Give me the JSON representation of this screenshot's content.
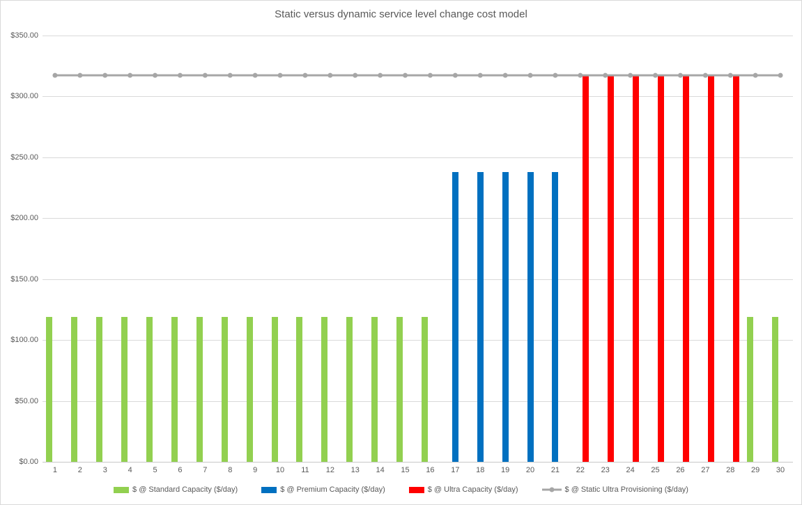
{
  "chart_data": {
    "type": "bar",
    "title": "Static versus dynamic service level change cost model",
    "categories": [
      "1",
      "2",
      "3",
      "4",
      "5",
      "6",
      "7",
      "8",
      "9",
      "10",
      "11",
      "12",
      "13",
      "14",
      "15",
      "16",
      "17",
      "18",
      "19",
      "20",
      "21",
      "22",
      "23",
      "24",
      "25",
      "26",
      "27",
      "28",
      "29",
      "30"
    ],
    "y_axis": {
      "range": [
        0,
        350
      ],
      "tick_step": 50,
      "tick_labels": [
        "$0.00",
        "$50.00",
        "$100.00",
        "$150.00",
        "$200.00",
        "$250.00",
        "$300.00",
        "$350.00"
      ]
    },
    "grid": true,
    "legend_position": "bottom",
    "series": [
      {
        "name": "$ @ Standard Capacity ($/day)",
        "type": "bar",
        "color": "#92D050",
        "values": [
          119.15,
          119.15,
          119.15,
          119.15,
          119.15,
          119.15,
          119.15,
          119.15,
          119.15,
          119.15,
          119.15,
          119.15,
          119.15,
          119.15,
          119.15,
          119.15,
          null,
          null,
          null,
          null,
          null,
          null,
          null,
          null,
          null,
          null,
          null,
          null,
          119.15,
          119.15
        ]
      },
      {
        "name": "$ @ Premium Capacity ($/day)",
        "type": "bar",
        "color": "#0070C0",
        "values": [
          null,
          null,
          null,
          null,
          null,
          null,
          null,
          null,
          null,
          null,
          null,
          null,
          null,
          null,
          null,
          null,
          237.7,
          237.7,
          237.7,
          237.7,
          237.7,
          null,
          null,
          null,
          null,
          null,
          null,
          null,
          null,
          null
        ]
      },
      {
        "name": "$ @ Ultra Capacity ($/day)",
        "type": "bar",
        "color": "#FF0000",
        "values": [
          null,
          null,
          null,
          null,
          null,
          null,
          null,
          null,
          null,
          null,
          null,
          null,
          null,
          null,
          null,
          null,
          null,
          null,
          null,
          null,
          null,
          317.3,
          317.3,
          317.3,
          317.3,
          317.3,
          317.3,
          317.3,
          null,
          null
        ]
      },
      {
        "name": "$ @ Static Ultra Provisioning ($/day)",
        "type": "line",
        "color": "#A6A6A6",
        "values": [
          317.3,
          317.3,
          317.3,
          317.3,
          317.3,
          317.3,
          317.3,
          317.3,
          317.3,
          317.3,
          317.3,
          317.3,
          317.3,
          317.3,
          317.3,
          317.3,
          317.3,
          317.3,
          317.3,
          317.3,
          317.3,
          317.3,
          317.3,
          317.3,
          317.3,
          317.3,
          317.3,
          317.3,
          317.3,
          317.3
        ]
      }
    ],
    "colors": {
      "grid": "#D9D9D9",
      "axis": "#C8C8C8",
      "text": "#595959",
      "background": "#FFFFFF",
      "border": "#D9D9D9"
    }
  }
}
